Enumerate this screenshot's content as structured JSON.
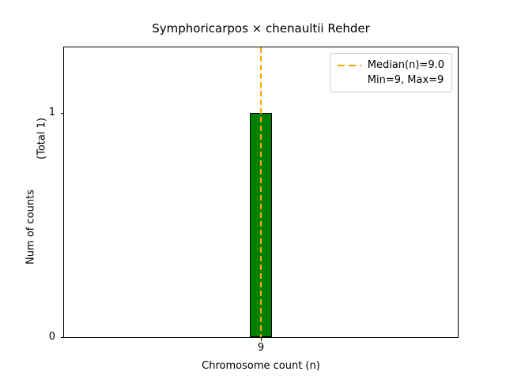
{
  "chart_data": {
    "type": "bar",
    "title": "Symphoricarpos × chenaultii Rehder",
    "xlabel": "Chromosome count (n)",
    "ylabel": "Num of counts",
    "ylabel_secondary": "(Total 1)",
    "categories": [
      9
    ],
    "values": [
      1
    ],
    "median": 9.0,
    "min": 9,
    "max": 9,
    "total_counts": 1,
    "xticks": [
      9
    ],
    "yticks": [
      0,
      1
    ],
    "xlim": [
      8,
      10
    ],
    "ylim": [
      0,
      1.29
    ],
    "bar_width_frac": 0.056,
    "bar_color": "#008000",
    "bar_edge_color": "#000000",
    "median_line_color": "#ffa500",
    "grid": false,
    "legend": {
      "position": "upper right",
      "entries": [
        "Median(n)=9.0",
        "Min=9, Max=9"
      ]
    }
  }
}
